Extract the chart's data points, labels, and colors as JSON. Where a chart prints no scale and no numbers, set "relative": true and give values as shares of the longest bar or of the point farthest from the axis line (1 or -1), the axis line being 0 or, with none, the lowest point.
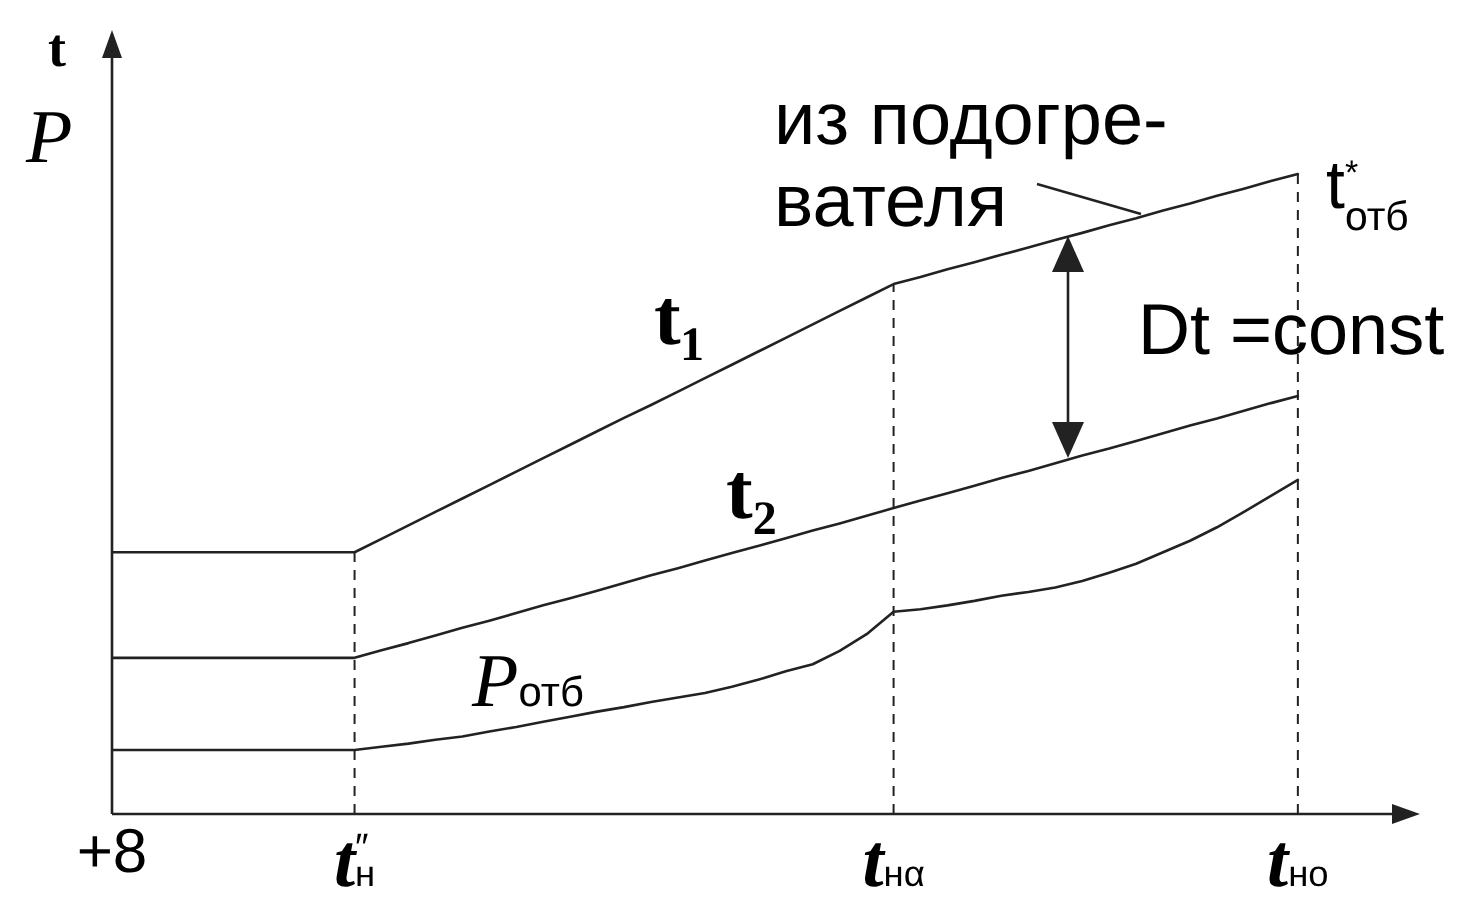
{
  "chart_data": {
    "type": "line",
    "ylabel": "t\nP",
    "relative": true,
    "legend": false,
    "grid": false,
    "marker": "none",
    "categories": [
      "+8",
      null,
      null,
      null,
      null,
      null,
      null,
      null,
      null,
      "t$^{″}$$_{н}$",
      null,
      null,
      null,
      null,
      null,
      null,
      null,
      null,
      null,
      null,
      null,
      null,
      null,
      null,
      null,
      null,
      null,
      null,
      null,
      "t$_{нα}$",
      null,
      null,
      null,
      null,
      null,
      null,
      null,
      null,
      null,
      null,
      null,
      null,
      null,
      null,
      "t$_{но}$"
    ],
    "series": [
      {
        "name": "t₁",
        "color": "#222222",
        "values": [
          0.409,
          0.409,
          0.409,
          0.409,
          0.409,
          0.409,
          0.409,
          0.409,
          0.409,
          0.409,
          0.43,
          0.451,
          0.472,
          0.493,
          0.514,
          0.535,
          0.556,
          0.577,
          0.598,
          0.619,
          0.639,
          0.66,
          0.681,
          0.702,
          0.723,
          0.744,
          0.765,
          0.786,
          0.807,
          0.828,
          0.839,
          0.851,
          0.862,
          0.874,
          0.885,
          0.897,
          0.908,
          0.92,
          0.931,
          0.943,
          0.954,
          0.966,
          0.977,
          0.989,
          1.0
        ]
      },
      {
        "name": "t₂",
        "color": "#222222",
        "values": [
          0.244,
          0.244,
          0.244,
          0.244,
          0.244,
          0.244,
          0.244,
          0.244,
          0.244,
          0.244,
          0.256,
          0.267,
          0.279,
          0.291,
          0.302,
          0.314,
          0.326,
          0.337,
          0.349,
          0.361,
          0.373,
          0.384,
          0.396,
          0.408,
          0.419,
          0.431,
          0.443,
          0.454,
          0.466,
          0.478,
          0.49,
          0.501,
          0.513,
          0.525,
          0.536,
          0.548,
          0.56,
          0.571,
          0.583,
          0.595,
          0.607,
          0.618,
          0.63,
          0.642,
          0.653
        ]
      },
      {
        "name": "P$_{отб}$",
        "color": "#222222",
        "values": [
          0.1,
          0.1,
          0.1,
          0.1,
          0.1,
          0.1,
          0.1,
          0.1,
          0.1,
          0.1,
          0.105,
          0.11,
          0.116,
          0.121,
          0.129,
          0.136,
          0.144,
          0.152,
          0.16,
          0.167,
          0.175,
          0.182,
          0.189,
          0.199,
          0.21,
          0.223,
          0.234,
          0.255,
          0.281,
          0.316,
          0.32,
          0.326,
          0.333,
          0.341,
          0.347,
          0.354,
          0.364,
          0.377,
          0.391,
          0.409,
          0.427,
          0.448,
          0.472,
          0.497,
          0.522
        ]
      }
    ],
    "ref_lines": [
      {
        "axis": "x",
        "value": "t$^{″}$$_{н}$",
        "line_style": "dashed"
      },
      {
        "axis": "x",
        "value": "t$_{нα}$",
        "line_style": "dashed"
      },
      {
        "axis": "x",
        "value": "t$_{но}$",
        "line_style": "dashed"
      }
    ],
    "annotations": [
      "из подогре-\nвателя",
      "t$^{*}$$_{отб}$",
      "Dt =const"
    ]
  }
}
